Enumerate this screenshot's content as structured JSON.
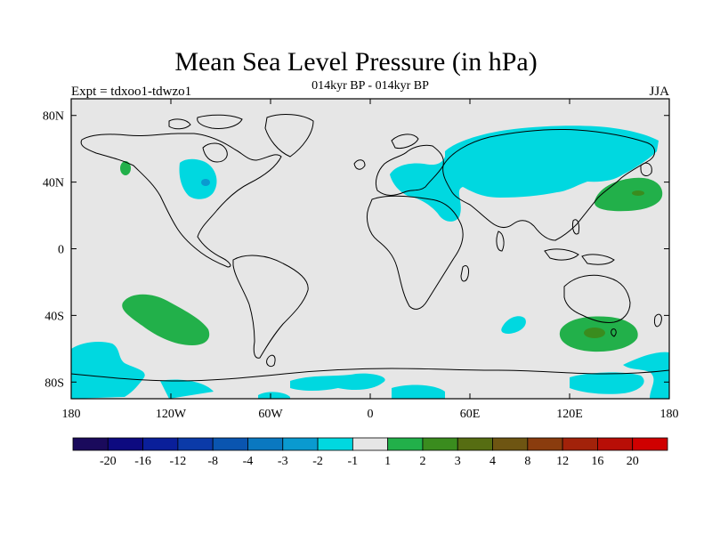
{
  "title": "Mean Sea Level Pressure (in hPa)",
  "experiment": "Expt = tdxoo1-tdwzo1",
  "period": "014kyr BP - 014kyr BP",
  "season": "JJA",
  "map": {
    "lon_range": [
      -180,
      180
    ],
    "lat_range": [
      -90,
      90
    ],
    "lat_ticks": [
      {
        "value": 80,
        "label": "80N"
      },
      {
        "value": 40,
        "label": "40N"
      },
      {
        "value": 0,
        "label": "0"
      },
      {
        "value": -40,
        "label": "40S"
      },
      {
        "value": -80,
        "label": "80S"
      }
    ],
    "lon_ticks": [
      {
        "value": -180,
        "label": "180"
      },
      {
        "value": -120,
        "label": "120W"
      },
      {
        "value": -60,
        "label": "60W"
      },
      {
        "value": 0,
        "label": "0"
      },
      {
        "value": 60,
        "label": "60E"
      },
      {
        "value": 120,
        "label": "120E"
      },
      {
        "value": 180,
        "label": "180"
      }
    ],
    "background_color": "#e6e6e6"
  },
  "colorbar": {
    "colors": [
      "#1a0a5c",
      "#0d0a80",
      "#0a1f9a",
      "#0b3aa8",
      "#0a55b0",
      "#0a78c0",
      "#0a9ad0",
      "#00d8e0",
      "#e6e6e6",
      "#22b04a",
      "#3a8c1e",
      "#566d12",
      "#6e5512",
      "#8a3c0e",
      "#a2220a",
      "#b80e06",
      "#d00000"
    ],
    "labels": [
      "-20",
      "-16",
      "-12",
      "-8",
      "-4",
      "-3",
      "-2",
      "-1",
      "1",
      "2",
      "3",
      "4",
      "8",
      "12",
      "16",
      "20"
    ]
  },
  "anomaly_regions": [
    {
      "name": "n-pacific-small-positive",
      "level": "2",
      "color": "#22b04a"
    },
    {
      "name": "n-america-negative",
      "level": "-1",
      "color": "#00d8e0"
    },
    {
      "name": "n-america-negative-core",
      "level": "-2",
      "color": "#0a9ad0"
    },
    {
      "name": "eurasia-negative",
      "level": "-1",
      "color": "#00d8e0"
    },
    {
      "name": "nw-pacific-positive",
      "level": "2",
      "color": "#22b04a"
    },
    {
      "name": "nw-pacific-positive-core",
      "level": "3",
      "color": "#3a8c1e"
    },
    {
      "name": "s-pacific-positive",
      "level": "2",
      "color": "#22b04a"
    },
    {
      "name": "s-australia-positive",
      "level": "2",
      "color": "#22b04a"
    },
    {
      "name": "s-australia-positive-core",
      "level": "3",
      "color": "#3a8c1e"
    },
    {
      "name": "south-atlantic-negative",
      "level": "-1",
      "color": "#00d8e0"
    },
    {
      "name": "southern-ocean-negative",
      "level": "-1",
      "color": "#00d8e0"
    }
  ]
}
